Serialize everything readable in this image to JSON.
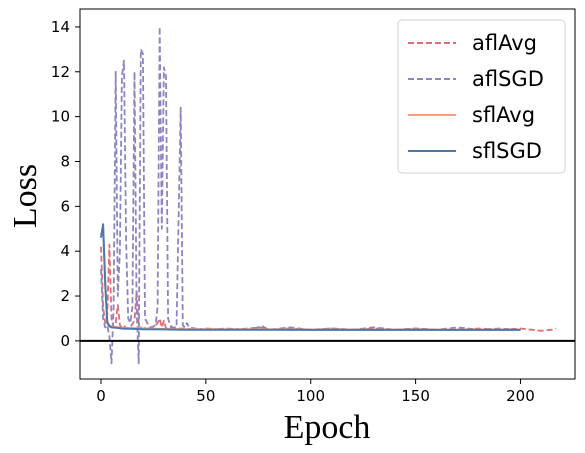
{
  "chart_data": {
    "type": "line",
    "title": "",
    "xlabel": "Epoch",
    "ylabel": "Loss",
    "xlim": [
      -10,
      226
    ],
    "ylim": [
      -1.7,
      14.8
    ],
    "xticks": [
      0,
      50,
      100,
      150,
      200
    ],
    "yticks": [
      0,
      2,
      4,
      6,
      8,
      10,
      12,
      14
    ],
    "grid": false,
    "legend_position": "top-right",
    "reference_line": {
      "y": 0,
      "color": "#000000"
    },
    "series": [
      {
        "name": "aflAvg",
        "color": "#e06c75",
        "dash": true,
        "x": [
          0,
          1,
          2,
          3,
          4,
          5,
          6,
          7,
          8,
          9,
          10,
          11,
          12,
          14,
          16,
          17,
          18,
          19,
          20,
          22,
          25,
          27,
          28,
          29,
          30,
          31,
          33,
          36,
          40,
          45,
          50,
          60,
          70,
          77,
          80,
          90,
          100,
          110,
          120,
          130,
          140,
          150,
          160,
          170,
          180,
          190,
          200,
          205,
          210,
          215,
          217
        ],
        "y": [
          4.2,
          1.5,
          0.8,
          1.2,
          4.3,
          1.0,
          0.6,
          0.8,
          1.6,
          0.7,
          0.6,
          0.7,
          0.55,
          0.6,
          0.9,
          2.2,
          0.7,
          0.6,
          0.55,
          0.6,
          0.55,
          0.8,
          1.0,
          0.6,
          0.9,
          0.55,
          0.6,
          0.55,
          0.55,
          0.5,
          0.55,
          0.5,
          0.55,
          0.6,
          0.5,
          0.55,
          0.5,
          0.55,
          0.5,
          0.55,
          0.5,
          0.55,
          0.5,
          0.5,
          0.55,
          0.5,
          0.55,
          0.5,
          0.45,
          0.5,
          0.55
        ]
      },
      {
        "name": "aflSGD",
        "color": "#8b86c0",
        "dash": true,
        "x": [
          0,
          1,
          2,
          3,
          4,
          5,
          6,
          7,
          8,
          9,
          10,
          11,
          12,
          13,
          14,
          15,
          16,
          17,
          18,
          19,
          20,
          21,
          22,
          24,
          26,
          27,
          28,
          29,
          30,
          31,
          32,
          33,
          34,
          36,
          38,
          39,
          40,
          41,
          42,
          45,
          50,
          60,
          70,
          77,
          80,
          90,
          100,
          110,
          120,
          130,
          140,
          150,
          160,
          170,
          180,
          190,
          200
        ],
        "y": [
          3.2,
          1.0,
          0.6,
          0.7,
          0.2,
          -1.0,
          1.5,
          12.0,
          2.0,
          4.0,
          11.8,
          12.5,
          4.5,
          1.0,
          0.8,
          1.5,
          12.0,
          1.5,
          -1.0,
          13.0,
          12.8,
          1.0,
          0.8,
          0.6,
          0.7,
          1.5,
          14.0,
          5.0,
          12.2,
          11.8,
          1.0,
          0.7,
          0.6,
          0.6,
          10.4,
          0.7,
          0.6,
          0.8,
          0.6,
          0.55,
          0.5,
          0.55,
          0.5,
          0.65,
          0.5,
          0.6,
          0.5,
          0.55,
          0.5,
          0.6,
          0.5,
          0.55,
          0.5,
          0.6,
          0.5,
          0.55,
          0.5
        ]
      },
      {
        "name": "sflAvg",
        "color": "#f4a072",
        "dash": false,
        "x": [
          0,
          1,
          2,
          3,
          4,
          5,
          8,
          10,
          20,
          30,
          40,
          50,
          60,
          80,
          100,
          120,
          140,
          160,
          180,
          200
        ],
        "y": [
          4.7,
          5.1,
          2.5,
          0.85,
          0.7,
          0.65,
          0.6,
          0.58,
          0.55,
          0.53,
          0.52,
          0.52,
          0.51,
          0.51,
          0.5,
          0.5,
          0.5,
          0.5,
          0.5,
          0.5
        ]
      },
      {
        "name": "sflSGD",
        "color": "#4a78b0",
        "dash": false,
        "x": [
          0,
          1,
          2,
          3,
          4,
          5,
          8,
          10,
          20,
          30,
          40,
          50,
          60,
          80,
          100,
          120,
          140,
          160,
          180,
          200
        ],
        "y": [
          4.6,
          5.2,
          2.6,
          0.8,
          0.65,
          0.6,
          0.58,
          0.55,
          0.52,
          0.51,
          0.5,
          0.5,
          0.5,
          0.5,
          0.49,
          0.49,
          0.49,
          0.49,
          0.49,
          0.49
        ]
      }
    ]
  }
}
